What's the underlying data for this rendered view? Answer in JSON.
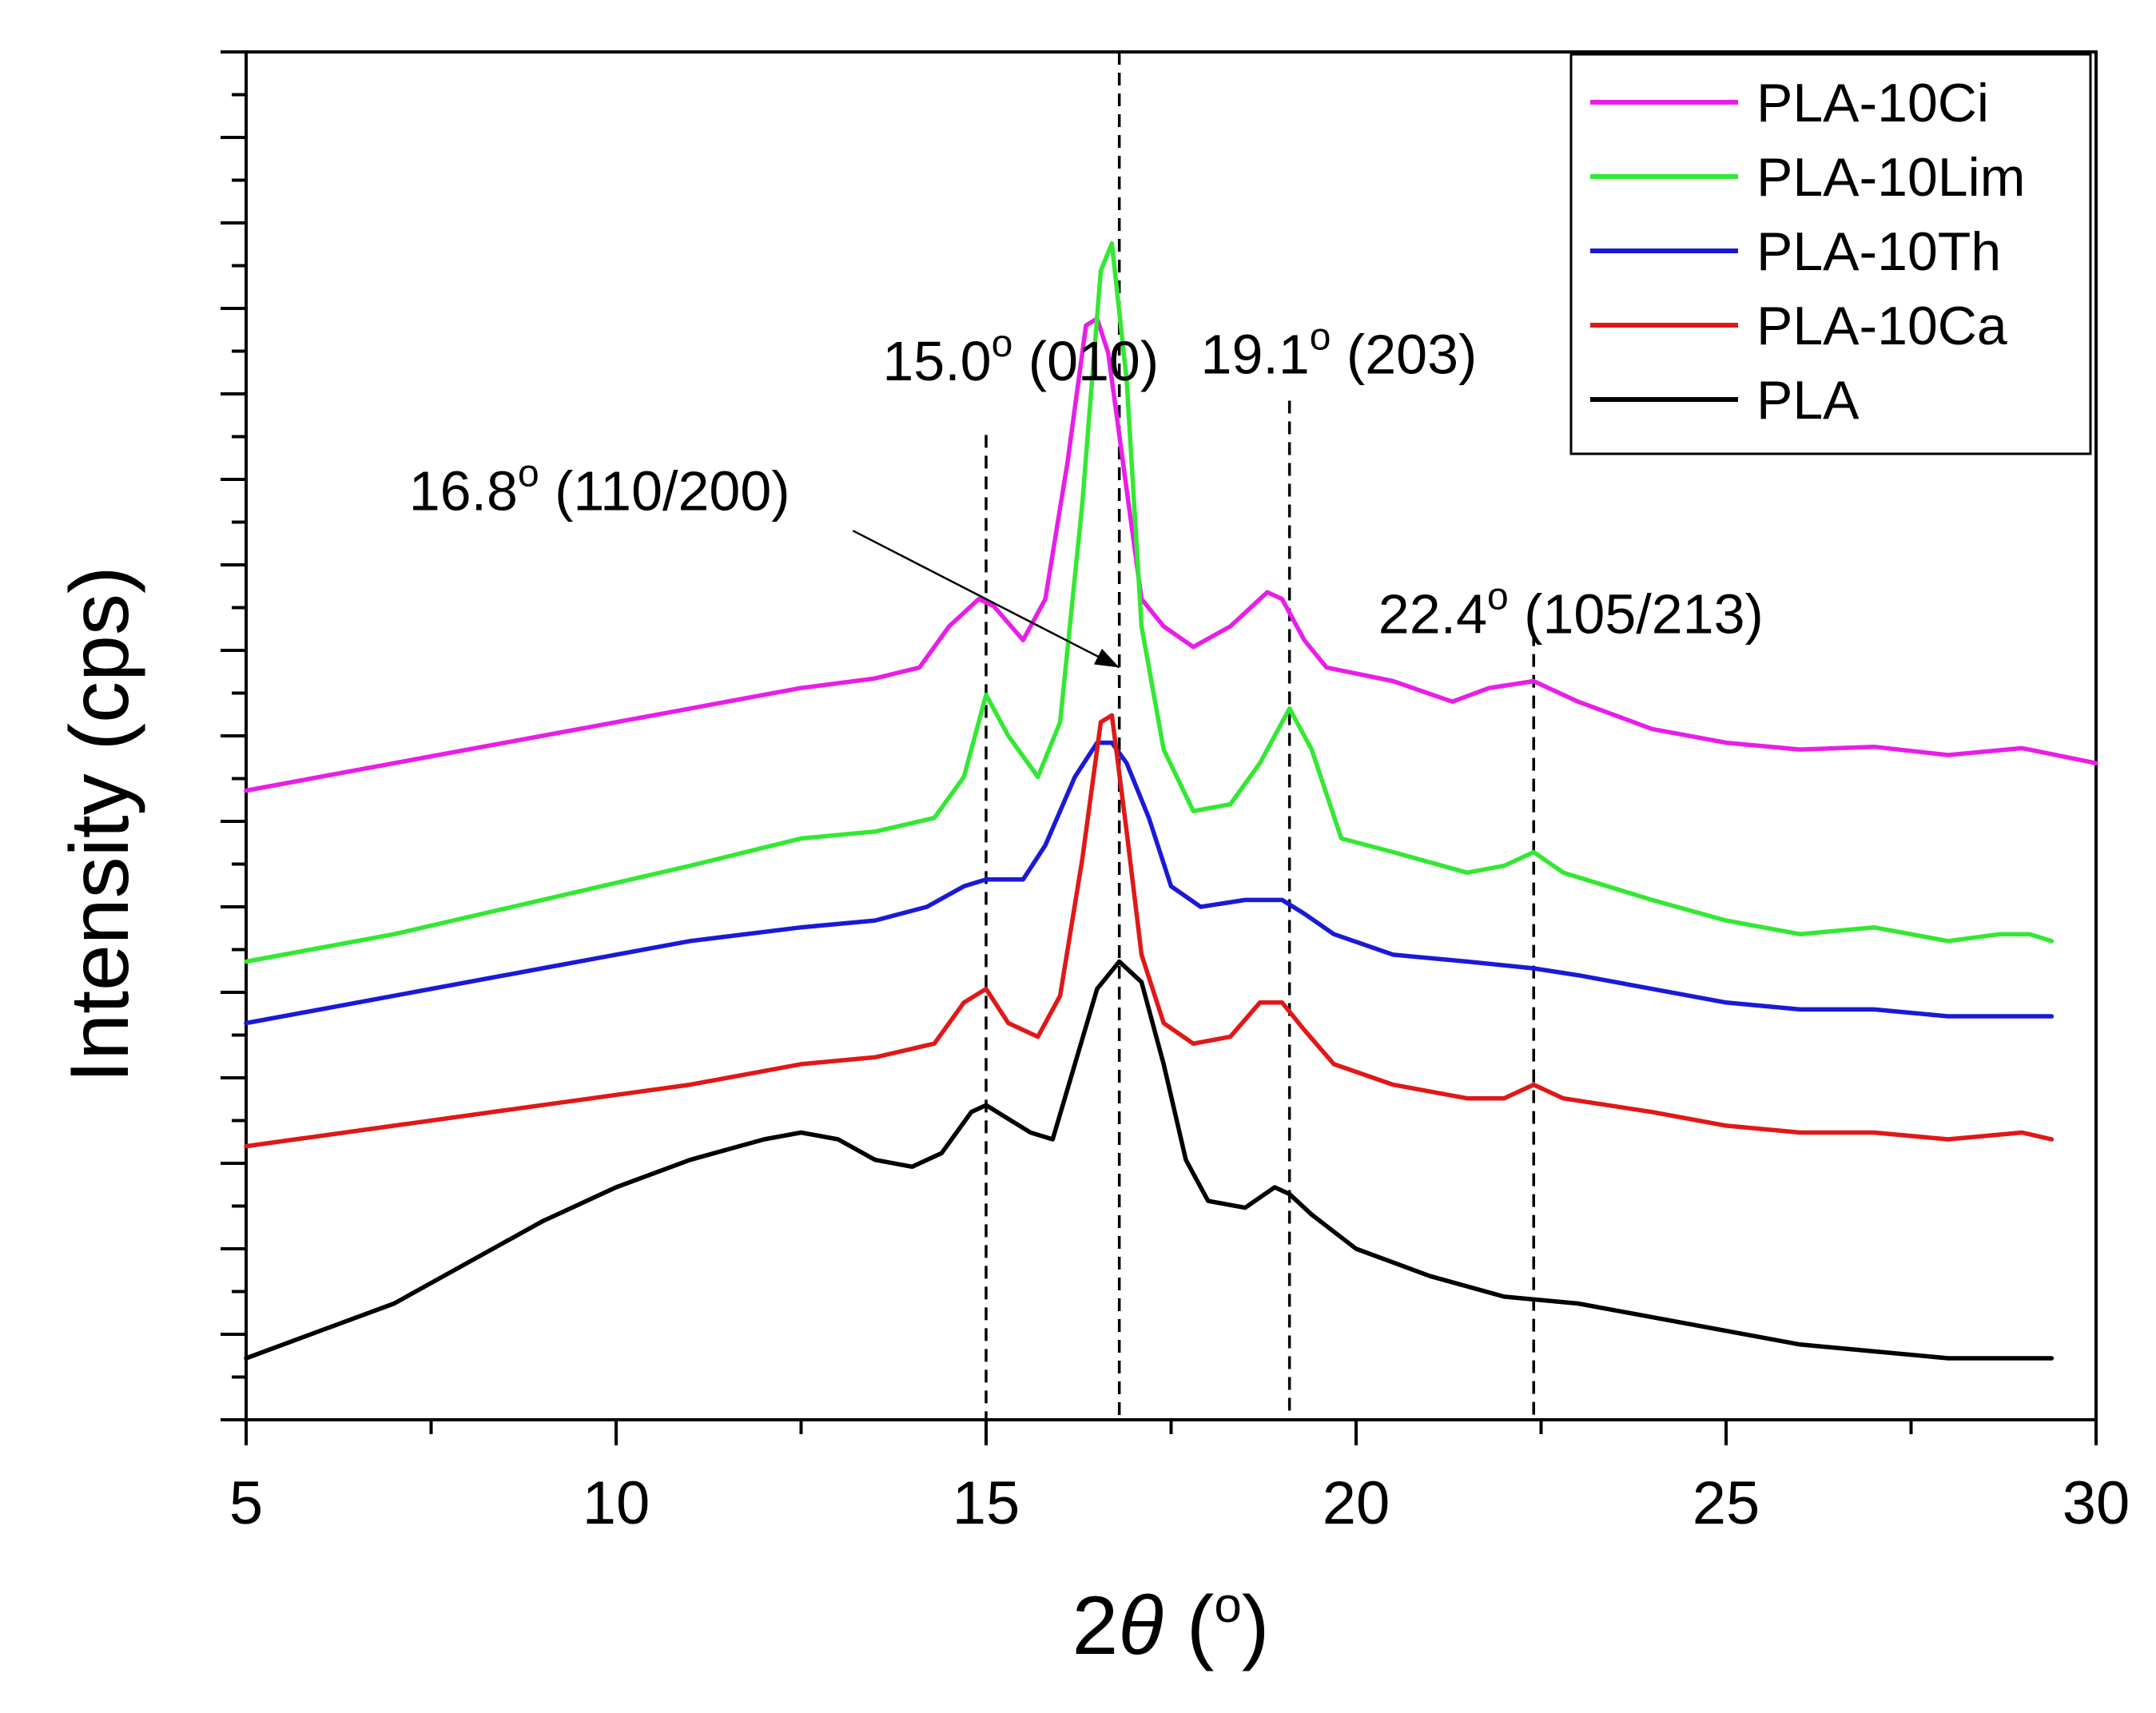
{
  "chart_data": {
    "type": "line",
    "title": "",
    "xlabel_prefix": "2",
    "xlabel_symbol": "θ",
    "xlabel_open": " (",
    "xlabel_unit": "o",
    "xlabel_close": ")",
    "ylabel": "Intensity (cps)",
    "xlim": [
      5,
      30
    ],
    "ylim": [
      0,
      100
    ],
    "xticks": [
      5,
      10,
      15,
      20,
      25,
      30
    ],
    "xtick_labels": [
      "5",
      "10",
      "15",
      "20",
      "25",
      "30"
    ],
    "y_tick_labels_shown": false,
    "legend_position": "top-right",
    "series": [
      {
        "name": "PLA-10Ci",
        "color": "#e81ee8",
        "x": [
          5,
          7,
          9,
          11,
          12.5,
          13.5,
          14.1,
          14.5,
          14.9,
          15.1,
          15.5,
          15.8,
          16.1,
          16.35,
          16.5,
          16.65,
          16.9,
          17.1,
          17.4,
          17.8,
          18.3,
          18.8,
          19.0,
          19.3,
          19.6,
          20.5,
          21.3,
          21.8,
          22.4,
          23.0,
          24.0,
          25.0,
          26.0,
          27.0,
          28.0,
          29.0,
          30.0
        ],
        "y": [
          46,
          48,
          50,
          52,
          53.5,
          54.2,
          55,
          58,
          60,
          59.5,
          57,
          60,
          70,
          80,
          80.5,
          78,
          68,
          60,
          58,
          56.5,
          58,
          60.5,
          60,
          57,
          55,
          54,
          52.5,
          53.5,
          54,
          52.5,
          50.5,
          49.5,
          49,
          49.2,
          48.6,
          49.1,
          48
        ]
      },
      {
        "name": "PLA-10Lim",
        "color": "#33e833",
        "x": [
          5,
          7,
          9,
          11,
          12.5,
          13.5,
          14.3,
          14.7,
          15.0,
          15.3,
          15.7,
          16.0,
          16.3,
          16.55,
          16.7,
          16.9,
          17.1,
          17.4,
          17.8,
          18.3,
          18.7,
          19.1,
          19.4,
          19.8,
          20.5,
          21.5,
          22.0,
          22.4,
          22.8,
          24.0,
          25.0,
          26.0,
          27.0,
          28.0,
          28.7,
          29.1,
          29.4
        ],
        "y": [
          33.5,
          35.5,
          38,
          40.5,
          42.5,
          43,
          44,
          47,
          53,
          50,
          47,
          51,
          67,
          84,
          86,
          76,
          58,
          49,
          44.5,
          45,
          48,
          52,
          49,
          42.5,
          41.5,
          40,
          40.5,
          41.5,
          40,
          38,
          36.5,
          35.5,
          36,
          35,
          35.5,
          35.5,
          35
        ]
      },
      {
        "name": "PLA-10Th",
        "color": "#1a1ad6",
        "x": [
          5,
          7,
          9,
          11,
          12.5,
          13.5,
          14.2,
          14.7,
          15.0,
          15.5,
          15.8,
          16.2,
          16.5,
          16.7,
          16.9,
          17.2,
          17.5,
          17.9,
          18.5,
          19.0,
          19.3,
          19.7,
          20.5,
          21.5,
          22.4,
          23.0,
          24.0,
          25.0,
          26.0,
          27.0,
          28.0,
          29.0,
          29.4
        ],
        "y": [
          29,
          31,
          33,
          35,
          36,
          36.5,
          37.5,
          39,
          39.5,
          39.5,
          42,
          47,
          49.5,
          49.5,
          48,
          44,
          39,
          37.5,
          38,
          38,
          37,
          35.5,
          34,
          33.5,
          33,
          32.5,
          31.5,
          30.5,
          30,
          30,
          29.5,
          29.5,
          29.5
        ]
      },
      {
        "name": "PLA-10Ca",
        "color": "#e01818",
        "x": [
          5,
          7,
          9,
          11,
          12.5,
          13.5,
          14.3,
          14.7,
          15.0,
          15.3,
          15.7,
          16.0,
          16.3,
          16.55,
          16.7,
          16.9,
          17.1,
          17.4,
          17.8,
          18.3,
          18.7,
          19.0,
          19.3,
          19.7,
          20.5,
          21.5,
          22.0,
          22.4,
          22.8,
          24.0,
          25.0,
          26.0,
          27.0,
          28.0,
          29.0,
          29.4
        ],
        "y": [
          20,
          21.5,
          23,
          24.5,
          26,
          26.5,
          27.5,
          30.5,
          31.5,
          29,
          28,
          31,
          41,
          51,
          51.5,
          43,
          34,
          29,
          27.5,
          28,
          30.5,
          30.5,
          28.5,
          26,
          24.5,
          23.5,
          23.5,
          24.5,
          23.5,
          22.5,
          21.5,
          21,
          21,
          20.5,
          21,
          20.5
        ]
      },
      {
        "name": "PLA",
        "color": "#000000",
        "x": [
          5,
          6,
          7,
          8,
          9,
          10,
          11,
          12,
          12.5,
          13.0,
          13.5,
          14.0,
          14.4,
          14.8,
          15.0,
          15.3,
          15.6,
          15.9,
          16.2,
          16.5,
          16.8,
          17.1,
          17.4,
          17.7,
          18.0,
          18.5,
          18.9,
          19.1,
          19.4,
          20.0,
          20.5,
          21.0,
          22.0,
          23.0,
          24.0,
          25.0,
          26.0,
          27.0,
          28.0,
          29.0,
          29.4
        ],
        "y": [
          4.5,
          6.5,
          8.5,
          11.5,
          14.5,
          17,
          19,
          20.5,
          21,
          20.5,
          19,
          18.5,
          19.5,
          22.5,
          23,
          22,
          21,
          20.5,
          26,
          31.5,
          33.5,
          32,
          26,
          19,
          16,
          15.5,
          17,
          16.5,
          15,
          12.5,
          11.5,
          10.5,
          9,
          8.5,
          7.5,
          6.5,
          5.5,
          5,
          4.5,
          4.5,
          4.5
        ]
      }
    ],
    "reference_lines": [
      {
        "x": 15.0,
        "y_top": 72
      },
      {
        "x": 16.8,
        "y_top": 100
      },
      {
        "x": 19.1,
        "y_top": 74.5
      },
      {
        "x": 22.4,
        "y_top": 57.5
      }
    ],
    "annotations": [
      {
        "name": "peak-15",
        "deg": "15.0",
        "sup": "o",
        "hkl": " (010)",
        "x": 13.6,
        "y": 76
      },
      {
        "name": "peak-16-8",
        "deg": "16.8",
        "sup": "o",
        "hkl": " (110/200)",
        "x": 7.2,
        "y": 66.5
      },
      {
        "name": "peak-19-1",
        "deg": "19.1",
        "sup": "o",
        "hkl": " (203)",
        "x": 17.9,
        "y": 76.5
      },
      {
        "name": "peak-22-4",
        "deg": "22.4",
        "sup": "o",
        "hkl": " (105/213)",
        "x": 20.3,
        "y": 57.5
      }
    ],
    "arrow": {
      "from_x": 13.2,
      "from_y": 65,
      "to_x": 16.8,
      "to_y": 55
    }
  }
}
